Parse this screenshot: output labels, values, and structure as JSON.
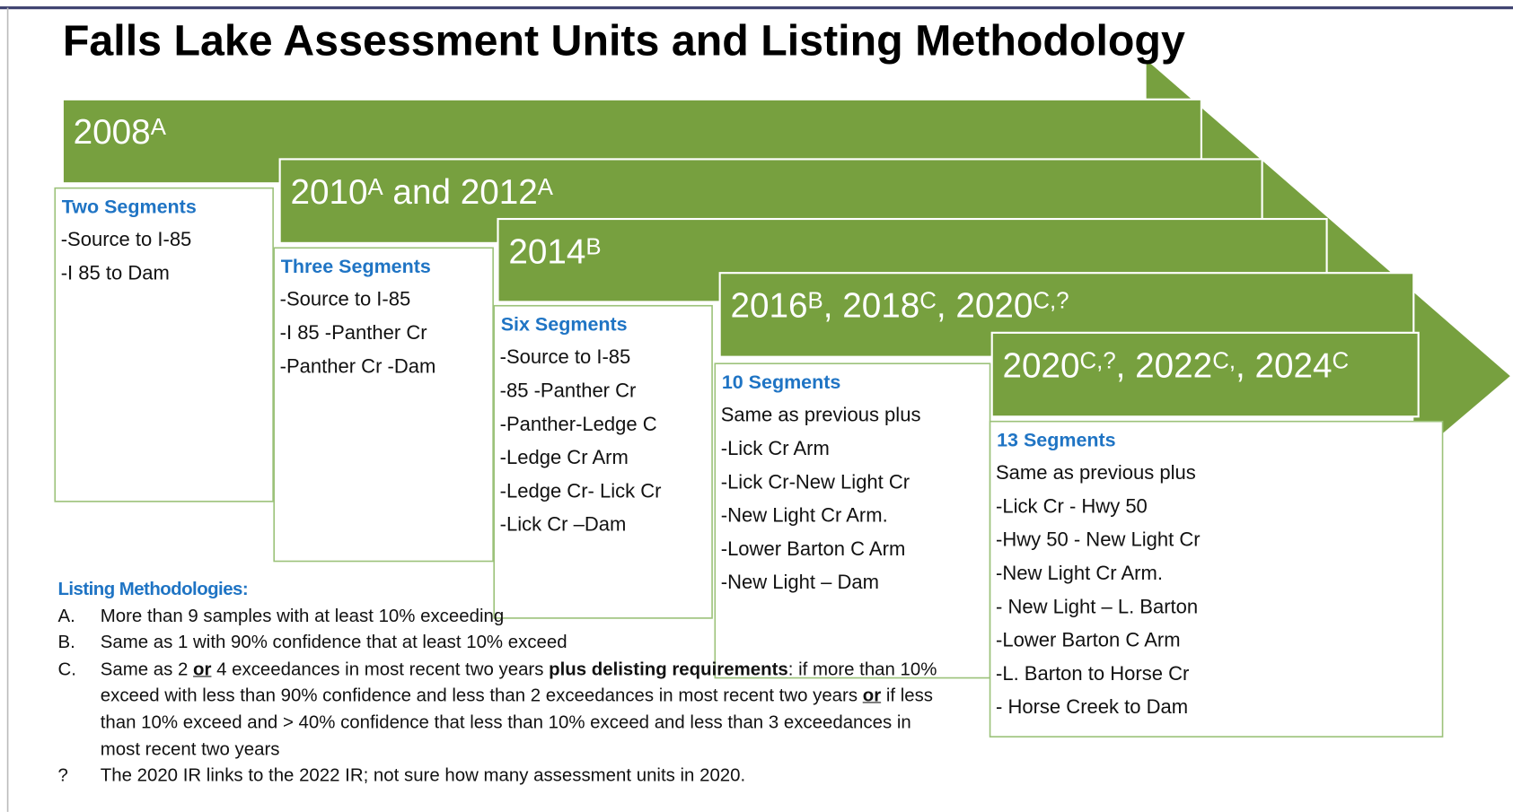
{
  "title": "Falls Lake Assessment Units and Listing Methodology",
  "arrows": [
    {
      "label": [
        {
          "text": "2008"
        },
        {
          "text": "A",
          "sup": true
        }
      ]
    },
    {
      "label": [
        {
          "text": "2010"
        },
        {
          "text": "A",
          "sup": true
        },
        {
          "text": " and 2012"
        },
        {
          "text": "A",
          "sup": true
        }
      ]
    },
    {
      "label": [
        {
          "text": "2014"
        },
        {
          "text": "B",
          "sup": true
        }
      ]
    },
    {
      "label": [
        {
          "text": "2016"
        },
        {
          "text": "B",
          "sup": true
        },
        {
          "text": ", 2018"
        },
        {
          "text": "C",
          "sup": true
        },
        {
          "text": ", 2020"
        },
        {
          "text": "C,?",
          "sup": true
        }
      ]
    },
    {
      "label": [
        {
          "text": "2020"
        },
        {
          "text": "C,?",
          "sup": true
        },
        {
          "text": ", 2022"
        },
        {
          "text": "C,",
          "sup": true
        },
        {
          "text": ", 2024"
        },
        {
          "text": "C",
          "sup": true
        }
      ]
    }
  ],
  "boxes": [
    {
      "heading": "Two Segments",
      "items": [
        "-Source to I-85",
        "-I 85 to Dam"
      ]
    },
    {
      "heading": "Three Segments",
      "items": [
        "-Source to I-85",
        "-I 85 -Panther Cr",
        "-Panther Cr -Dam"
      ]
    },
    {
      "heading": "Six Segments",
      "items": [
        "-Source to I-85",
        "-85 -Panther Cr",
        "-Panther-Ledge C",
        "-Ledge Cr Arm",
        "-Ledge Cr- Lick Cr",
        "-Lick Cr –Dam"
      ]
    },
    {
      "heading": "10 Segments",
      "items": [
        "Same as previous plus",
        "-Lick Cr Arm",
        "-Lick Cr-New Light Cr",
        "-New Light Cr Arm.",
        "-Lower Barton C Arm",
        "-New Light – Dam"
      ]
    },
    {
      "heading": "13 Segments",
      "items": [
        "Same as previous plus",
        "-Lick Cr - Hwy 50",
        "-Hwy 50 - New Light Cr",
        "-New Light Cr Arm.",
        "- New Light – L. Barton",
        "-Lower Barton C Arm",
        "-L. Barton to Horse Cr",
        "- Horse Creek to Dam"
      ]
    }
  ],
  "methodologies": {
    "heading": "Listing Methodologies:",
    "items": [
      {
        "marker": "A.",
        "parts": [
          {
            "text": "More than 9 samples with at least 10% exceeding"
          }
        ]
      },
      {
        "marker": "B.",
        "parts": [
          {
            "text": "Same as 1 with 90% confidence that at least 10% exceed"
          }
        ]
      },
      {
        "marker": "C.",
        "parts": [
          {
            "text": "Same as 2 "
          },
          {
            "text": "or",
            "bold": true,
            "underline": true
          },
          {
            "text": " 4 exceedances in most recent two years "
          },
          {
            "text": "plus delisting requirements",
            "bold": true
          },
          {
            "text": ": if more than 10% exceed with less than 90% confidence  and less than 2 exceedances in most recent two years "
          },
          {
            "text": "or",
            "bold": true,
            "underline": true
          },
          {
            "text": " if less than 10% exceed and > 40% confidence that less than 10% exceed and less than 3 exceedances in most recent two years"
          }
        ]
      },
      {
        "marker": "?",
        "parts": [
          {
            "text": "The 2020 IR links to the 2022 IR; not sure how many assessment units in 2020."
          }
        ]
      }
    ]
  }
}
